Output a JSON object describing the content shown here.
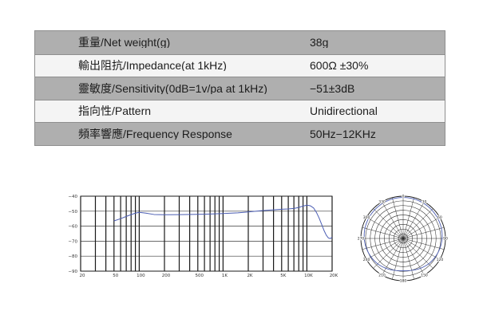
{
  "colors": {
    "shaded_row": "#afafaf",
    "plain_row": "#f4f4f4"
  },
  "spec_table": {
    "rows": [
      {
        "label": "重量/Net weight(g)",
        "value": "38g"
      },
      {
        "label": "輸出阻抗/Impedance(at 1kHz)",
        "value": "600Ω ±30%"
      },
      {
        "label": "靈敏度/Sensitivity(0dB=1v/pa at 1kHz)",
        "value": "−51±3dB"
      },
      {
        "label": "指向性/Pattern",
        "value": "Unidirectional"
      },
      {
        "label": "頻率響應/Frequency Response",
        "value": "50Hz−12KHz"
      }
    ]
  },
  "chart_data": [
    {
      "type": "line",
      "x_scale": "log",
      "xlim": [
        20,
        20000
      ],
      "ylim": [
        -90,
        -40
      ],
      "x_ticks": [
        20,
        50,
        100,
        200,
        500,
        1000,
        2000,
        5000,
        10000,
        20000
      ],
      "x_tick_labels": [
        "20",
        "50",
        "100",
        "200",
        "500",
        "1K",
        "2K",
        "5K",
        "10K",
        "20K"
      ],
      "y_ticks": [
        -40,
        -50,
        -60,
        -70,
        -80,
        -90
      ],
      "y_tick_labels": [
        "−40",
        "−50",
        "−60",
        "−70",
        "−80",
        "−90"
      ],
      "grid": true,
      "series": [
        {
          "color": "#4b5db3",
          "x": [
            50,
            60,
            70,
            80,
            90,
            100,
            120,
            150,
            200,
            300,
            500,
            700,
            1000,
            1500,
            2000,
            3000,
            4000,
            5000,
            6000,
            7000,
            8000,
            9000,
            10000,
            11000,
            12000,
            13000,
            14000,
            15000,
            16000,
            17000,
            18000,
            19000,
            20000
          ],
          "y": [
            -56.5,
            -55,
            -53.5,
            -52.3,
            -51.3,
            -50.8,
            -51.3,
            -52.2,
            -52.4,
            -52.3,
            -52.1,
            -51.9,
            -51.6,
            -51.1,
            -50.5,
            -49.6,
            -49.1,
            -48.7,
            -48.5,
            -48.2,
            -47.5,
            -46.6,
            -46.0,
            -46.4,
            -47.8,
            -50.8,
            -54.6,
            -58.8,
            -62.8,
            -65.9,
            -67.8,
            -68.3,
            -67.4
          ]
        }
      ]
    },
    {
      "type": "polar",
      "zero_location": "top",
      "angle_direction": "clockwise",
      "angle_ticks": [
        0,
        30,
        60,
        90,
        120,
        150,
        180,
        210,
        240,
        270,
        300,
        330
      ],
      "angle_tick_labels": [
        "0",
        "30",
        "60",
        "90",
        "120",
        "150",
        "180",
        "210",
        "240",
        "270",
        "300",
        "330"
      ],
      "rlim": [
        0,
        1
      ],
      "grid": true,
      "series": [
        {
          "color": "#4b5db3",
          "theta": [
            0,
            15,
            30,
            45,
            60,
            75,
            90,
            105,
            120,
            135,
            150,
            165,
            180,
            195,
            210,
            225,
            240,
            255,
            270,
            285,
            300,
            315,
            330,
            345,
            360
          ],
          "r": [
            0.97,
            0.968,
            0.962,
            0.955,
            0.945,
            0.935,
            0.92,
            0.9,
            0.875,
            0.85,
            0.815,
            0.78,
            0.76,
            0.78,
            0.815,
            0.85,
            0.875,
            0.9,
            0.92,
            0.935,
            0.945,
            0.955,
            0.962,
            0.968,
            0.97
          ]
        }
      ]
    }
  ]
}
